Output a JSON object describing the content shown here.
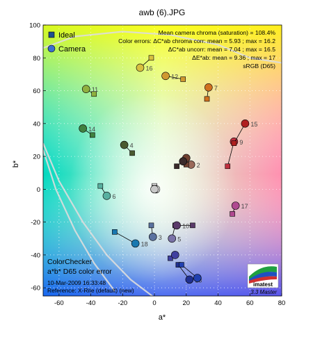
{
  "chart_data": {
    "type": "scatter",
    "title": "awb (6).JPG",
    "xlabel": "a*",
    "ylabel": "b*",
    "xlim": [
      -70,
      80
    ],
    "ylim": [
      -65,
      100
    ],
    "x_ticks": [
      -60,
      -40,
      -20,
      0,
      20,
      40,
      60,
      80
    ],
    "y_ticks": [
      -60,
      -40,
      -20,
      0,
      20,
      40,
      60,
      80,
      100
    ],
    "grid": "dotted",
    "legend_placement": "top-left",
    "legend": [
      {
        "label": "Ideal",
        "marker": "square",
        "color": "#1f4f8f"
      },
      {
        "label": "Camera",
        "marker": "circle",
        "color": "#3a6fcf"
      }
    ],
    "stats": [
      "Mean camera chroma (saturation) = 108.4%",
      "Color errors:  ΔC*ab chroma corr:  mean = 5.93  ;  max = 16.2",
      "ΔC*ab uncorr:  mean = 7.04  ;  max = 16.5",
      "ΔE*ab:  mean = 9.36  ;  max = 17",
      "sRGB (D65)"
    ],
    "info_block": [
      "ColorChecker",
      "a*b* D65 color error",
      "10-Mar-2009 16:33:48",
      "Reference:  X-Rite (default) (new)"
    ],
    "logo": "imatest",
    "version": "3.3  Master",
    "patches": [
      {
        "id": "2",
        "ideal": [
          18,
          17
        ],
        "camera": [
          23,
          15
        ],
        "color": "#9a6a5a"
      },
      {
        "id": "3",
        "ideal": [
          -2,
          -22
        ],
        "camera": [
          -1,
          -29
        ],
        "color": "#5a72a0"
      },
      {
        "id": "4",
        "ideal": [
          -14,
          22
        ],
        "camera": [
          -19,
          27
        ],
        "color": "#4a5a30"
      },
      {
        "id": "5",
        "ideal": [
          13,
          -22
        ],
        "camera": [
          11,
          -30
        ],
        "color": "#7a72a8"
      },
      {
        "id": "6",
        "ideal": [
          -34,
          2
        ],
        "camera": [
          -30,
          -4
        ],
        "color": "#58b0a0"
      },
      {
        "id": "7",
        "ideal": [
          33,
          55
        ],
        "camera": [
          34,
          62
        ],
        "color": "#d07020"
      },
      {
        "id": "8",
        "ideal": [
          10,
          -42
        ],
        "camera": [
          13,
          -40
        ],
        "color": "#4040a0"
      },
      {
        "id": "9",
        "ideal": [
          46,
          14
        ],
        "camera": [
          50,
          29
        ],
        "color": "#c03040"
      },
      {
        "id": "10",
        "ideal": [
          24,
          -22
        ],
        "camera": [
          14,
          -22
        ],
        "color": "#5a3a6a"
      },
      {
        "id": "11",
        "ideal": [
          -38,
          58
        ],
        "camera": [
          -43,
          61
        ],
        "color": "#90b040"
      },
      {
        "id": "12",
        "ideal": [
          18,
          67
        ],
        "camera": [
          7,
          69
        ],
        "color": "#d09830"
      },
      {
        "id": "13",
        "ideal": [
          15,
          -46
        ],
        "camera": [
          22,
          -55
        ],
        "color": "#203090"
      },
      {
        "id": "14",
        "ideal": [
          -39,
          33
        ],
        "camera": [
          -45,
          37
        ],
        "color": "#408040"
      },
      {
        "id": "15",
        "ideal": [
          50,
          28
        ],
        "camera": [
          57,
          40
        ],
        "color": "#b02020"
      },
      {
        "id": "16",
        "ideal": [
          -2,
          80
        ],
        "camera": [
          -9,
          74
        ],
        "color": "#d8c040"
      },
      {
        "id": "17",
        "ideal": [
          49,
          -15
        ],
        "camera": [
          51,
          -10
        ],
        "color": "#b04890"
      },
      {
        "id": "18",
        "ideal": [
          -25,
          -26
        ],
        "camera": [
          -12,
          -33
        ],
        "color": "#1878b0"
      },
      {
        "id": "19",
        "ideal": [
          0,
          2
        ],
        "camera": [
          1,
          0
        ],
        "color": "#f4f4f4"
      },
      {
        "id": "20",
        "ideal": [
          0,
          1
        ],
        "camera": [
          0,
          0
        ],
        "color": "#c8c8c8"
      },
      {
        "id": "21",
        "ideal": [
          20,
          15
        ],
        "camera": [
          20,
          19
        ],
        "color": "#704030"
      },
      {
        "id": "22",
        "ideal": [
          14,
          14
        ],
        "camera": [
          18,
          17
        ],
        "color": "#3a2a2a"
      },
      {
        "id": "23",
        "ideal": [
          17,
          -46
        ],
        "camera": [
          27,
          -54
        ],
        "color": "#2040b0"
      }
    ],
    "shown_labels": [
      "2",
      "3",
      "4",
      "5",
      "6",
      "7",
      "9",
      "10",
      "11",
      "12",
      "13",
      "14",
      "15",
      "16",
      "17",
      "18"
    ]
  }
}
